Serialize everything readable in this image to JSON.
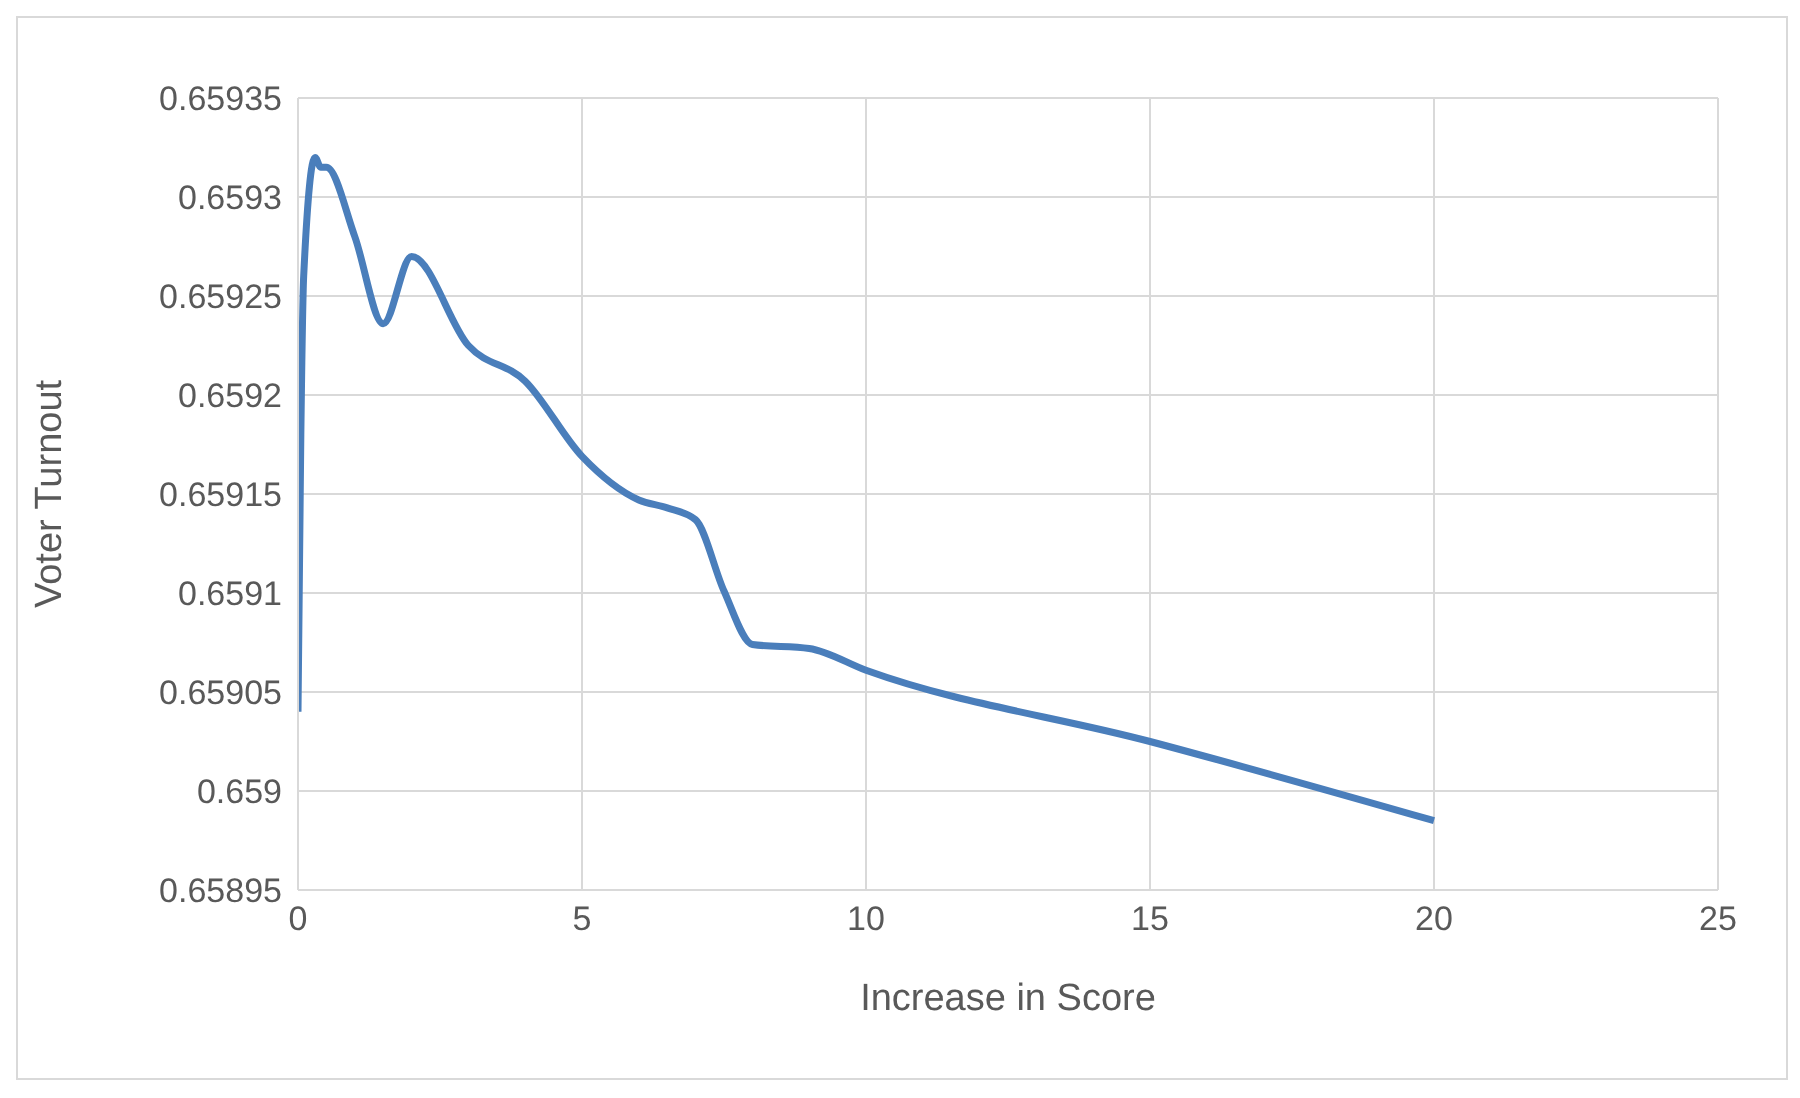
{
  "chart_data": {
    "type": "line",
    "xlabel": "Increase in Score",
    "ylabel": "Voter Turnout",
    "x": [
      0,
      0.05,
      0.1,
      0.3,
      0.4,
      0.5,
      1,
      1.5,
      2,
      3,
      4,
      5,
      6,
      6.5,
      7,
      7.5,
      8,
      9,
      10,
      15,
      20
    ],
    "series": [
      {
        "color": "#4a7ebb",
        "values": [
          0.65904,
          0.65918,
          0.65926,
          0.65932,
          0.659315,
          0.659315,
          0.65928,
          0.659236,
          0.65927,
          0.659225,
          0.659207,
          0.659169,
          0.659147,
          0.659143,
          0.659137,
          0.659101,
          0.659074,
          0.659072,
          0.659061,
          0.659025,
          0.658985
        ]
      }
    ],
    "xlim": [
      0,
      25
    ],
    "xticks": [
      0,
      5,
      10,
      15,
      20,
      25
    ],
    "ylim": [
      0.65895,
      0.65935
    ],
    "yticks": [
      0.65895,
      0.659,
      0.65905,
      0.6591,
      0.65915,
      0.6592,
      0.65925,
      0.6593,
      0.65935
    ],
    "grid": true,
    "marker": "none",
    "line_style": "solid"
  }
}
